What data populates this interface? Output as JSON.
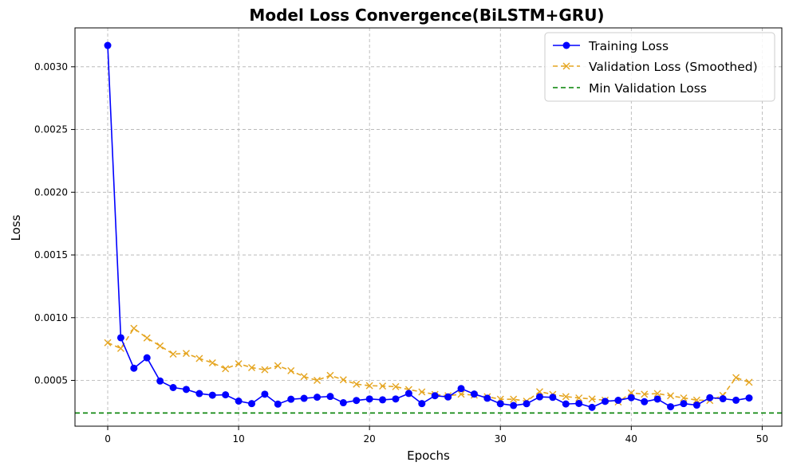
{
  "chart_data": {
    "type": "line",
    "title": "Model Loss Convergence(BiLSTM+GRU)",
    "xlabel": "Epochs",
    "ylabel": "Loss",
    "xlim": [
      -2.5,
      51.5
    ],
    "ylim": [
      0.000135,
      0.00331
    ],
    "xticks": [
      0,
      10,
      20,
      30,
      40,
      50
    ],
    "yticks": [
      0.0005,
      0.001,
      0.0015,
      0.002,
      0.0025,
      0.003
    ],
    "ytick_labels": [
      "0.0005",
      "0.0010",
      "0.0015",
      "0.0020",
      "0.0025",
      "0.0030"
    ],
    "grid": true,
    "legend_position": "top-right",
    "x": [
      0,
      1,
      2,
      3,
      4,
      5,
      6,
      7,
      8,
      9,
      10,
      11,
      12,
      13,
      14,
      15,
      16,
      17,
      18,
      19,
      20,
      21,
      22,
      23,
      24,
      25,
      26,
      27,
      28,
      29,
      30,
      31,
      32,
      33,
      34,
      35,
      36,
      37,
      38,
      39,
      40,
      41,
      42,
      43,
      44,
      45,
      46,
      47,
      48,
      49
    ],
    "series": [
      {
        "name": "Training Loss",
        "color": "#0000ff",
        "style": "solid",
        "marker": "circle",
        "values": [
          0.00317,
          0.00084,
          0.000597,
          0.00068,
          0.000495,
          0.000443,
          0.000428,
          0.000395,
          0.000382,
          0.000385,
          0.000335,
          0.000315,
          0.00039,
          0.000311,
          0.00035,
          0.000357,
          0.000366,
          0.000372,
          0.000322,
          0.00034,
          0.000352,
          0.000345,
          0.000352,
          0.000396,
          0.000315,
          0.000378,
          0.000368,
          0.000435,
          0.000391,
          0.000358,
          0.000314,
          0.0003,
          0.000314,
          0.000369,
          0.000365,
          0.000312,
          0.000316,
          0.000285,
          0.000333,
          0.000341,
          0.000362,
          0.00033,
          0.000351,
          0.00029,
          0.000315,
          0.000303,
          0.000362,
          0.000354,
          0.000342,
          0.00036
        ]
      },
      {
        "name": "Validation Loss (Smoothed)",
        "color": "#e5a520",
        "style": "dashed",
        "marker": "x",
        "values": [
          0.0008,
          0.000755,
          0.000915,
          0.000838,
          0.000775,
          0.00071,
          0.000715,
          0.000675,
          0.00064,
          0.000593,
          0.000633,
          0.000602,
          0.000585,
          0.000617,
          0.000577,
          0.00053,
          0.0005,
          0.00054,
          0.000505,
          0.00047,
          0.000458,
          0.000455,
          0.00045,
          0.000427,
          0.000408,
          0.000388,
          0.000378,
          0.00039,
          0.000383,
          0.00037,
          0.00035,
          0.00035,
          0.000334,
          0.00041,
          0.000388,
          0.000371,
          0.00036,
          0.000352,
          0.000342,
          0.000328,
          0.0004,
          0.00039,
          0.000395,
          0.000377,
          0.00036,
          0.000343,
          0.00034,
          0.00038,
          0.000522,
          0.000485
        ]
      },
      {
        "name": "Min Validation Loss",
        "color": "#008000",
        "style": "dashed",
        "marker": "none",
        "hline": 0.00024
      }
    ]
  }
}
